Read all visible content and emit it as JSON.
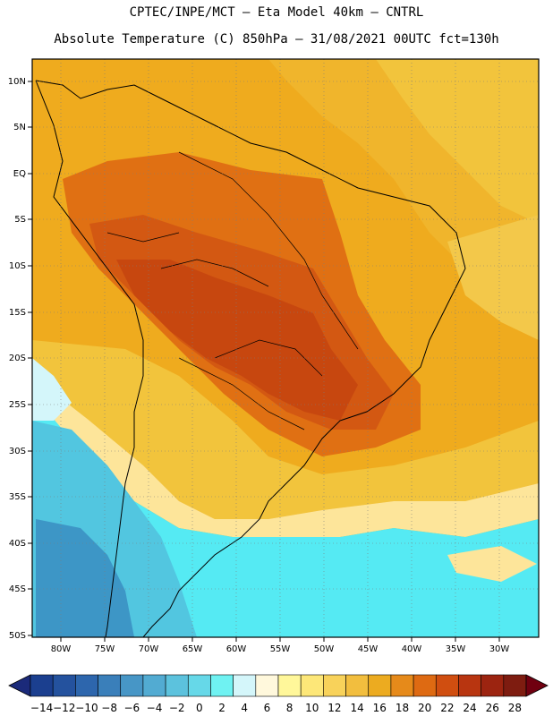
{
  "header": {
    "line1": "CPTEC/INPE/MCT –  Eta Model 40km – CNTRL",
    "line2": "Absolute Temperature (C) 850hPa – 31/08/2021 00UTC fct=130h"
  },
  "axes": {
    "lat_labels": [
      "10N",
      "5N",
      "EQ",
      "5S",
      "10S",
      "15S",
      "20S",
      "25S",
      "30S",
      "35S",
      "40S",
      "45S",
      "50S"
    ],
    "lon_labels": [
      "80W",
      "75W",
      "70W",
      "65W",
      "60W",
      "55W",
      "50W",
      "45W",
      "40W",
      "35W",
      "30W"
    ]
  },
  "colorbar": {
    "labels": [
      "-14",
      "-12",
      "-10",
      "-8",
      "-6",
      "-4",
      "-2",
      "0",
      "2",
      "4",
      "6",
      "8",
      "10",
      "12",
      "14",
      "16",
      "18",
      "20",
      "22",
      "24",
      "26",
      "28"
    ],
    "colors": [
      "#1b3f8f",
      "#24529e",
      "#2d66ad",
      "#3a7fba",
      "#4796c6",
      "#52abd2",
      "#5cc2dd",
      "#66d8e8",
      "#6ff2f2",
      "#d4f6fa",
      "#fff8dc",
      "#fff79a",
      "#fde778",
      "#f8d25a",
      "#f2be3e",
      "#ecab20",
      "#e68a1a",
      "#de6a12",
      "#d04e10",
      "#b83510",
      "#9c2410",
      "#7e1c10"
    ],
    "under_color": "#1b2a7a",
    "over_color": "#700010"
  },
  "map_colors": {
    "hot": "#e07013",
    "very_hot": "#c7470f",
    "warm": "#eba21a",
    "mild": "#f2c43c",
    "cool": "#fde59a",
    "pale": "#d4f6fa",
    "cyan": "#55eaf3",
    "sky": "#52c6e0",
    "steel": "#3d96c6"
  }
}
